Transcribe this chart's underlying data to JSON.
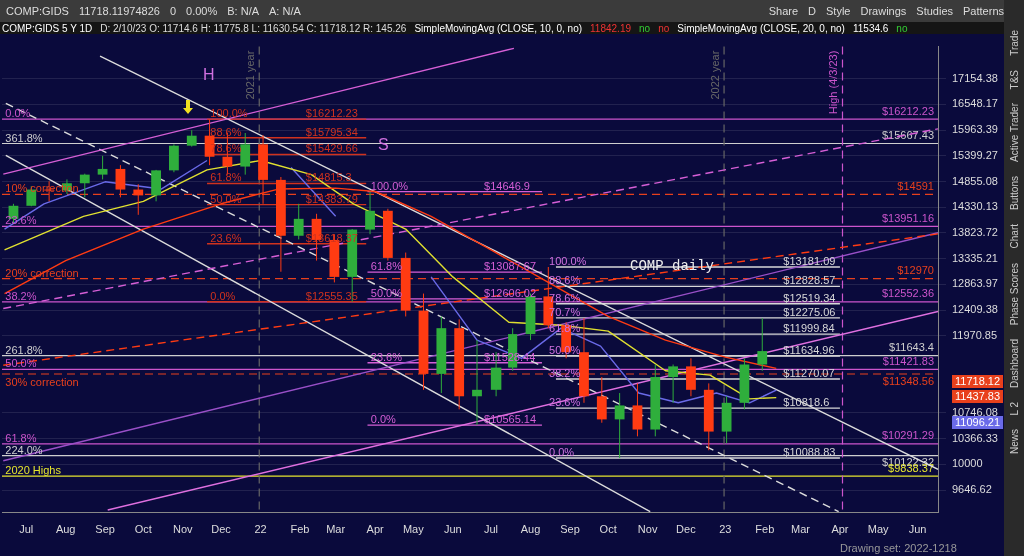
{
  "chart_data": {
    "type": "candlestick",
    "title": "COMP:GIDS 5 Y 1D",
    "subtitle": "D: 2/10/23   O: 11714.6   H: 11775.8   L: 11630.54   C: 11718.12   R: 145.26",
    "x": [
      "2021-06-21",
      "2021-07-05",
      "2021-07-19",
      "2021-08-02",
      "2021-08-16",
      "2021-08-30",
      "2021-09-13",
      "2021-09-27",
      "2021-10-11",
      "2021-10-25",
      "2021-11-08",
      "2021-11-22",
      "2021-12-06",
      "2021-12-20",
      "2022-01-03",
      "2022-01-17",
      "2022-01-31",
      "2022-02-14",
      "2022-02-28",
      "2022-03-14",
      "2022-03-28",
      "2022-04-11",
      "2022-04-25",
      "2022-05-09",
      "2022-05-23",
      "2022-06-06",
      "2022-06-20",
      "2022-07-05",
      "2022-07-18",
      "2022-08-01",
      "2022-08-15",
      "2022-08-29",
      "2022-09-12",
      "2022-09-26",
      "2022-10-10",
      "2022-10-24",
      "2022-11-07",
      "2022-11-21",
      "2022-12-05",
      "2022-12-19",
      "2023-01-02",
      "2023-01-16",
      "2023-01-30"
    ],
    "ohlc": [
      [
        14100,
        14400,
        14000,
        14360
      ],
      [
        14360,
        14760,
        14350,
        14690
      ],
      [
        14690,
        14860,
        14450,
        14670
      ],
      [
        14670,
        14900,
        14600,
        14820
      ],
      [
        14820,
        15020,
        14530,
        15000
      ],
      [
        15000,
        15400,
        14900,
        15120
      ],
      [
        15120,
        15200,
        14530,
        14690
      ],
      [
        14690,
        14800,
        14180,
        14570
      ],
      [
        14570,
        15100,
        14450,
        15090
      ],
      [
        15090,
        15650,
        15050,
        15620
      ],
      [
        15620,
        15960,
        15600,
        15840
      ],
      [
        15840,
        16212,
        15200,
        15380
      ],
      [
        15380,
        15900,
        15000,
        15170
      ],
      [
        15170,
        15900,
        15000,
        15650
      ],
      [
        15650,
        15850,
        14400,
        14890
      ],
      [
        14890,
        14950,
        13094,
        13770
      ],
      [
        13770,
        14400,
        13700,
        14100
      ],
      [
        14100,
        14200,
        13300,
        13690
      ],
      [
        13690,
        13800,
        12900,
        13000
      ],
      [
        13000,
        13900,
        12555,
        13890
      ],
      [
        13890,
        14646,
        13800,
        14260
      ],
      [
        14260,
        14300,
        13300,
        13350
      ],
      [
        13350,
        13450,
        12300,
        12400
      ],
      [
        12400,
        12700,
        11100,
        11350
      ],
      [
        11350,
        12300,
        11050,
        12100
      ],
      [
        12100,
        12250,
        10800,
        11000
      ],
      [
        11000,
        11900,
        10565,
        11100
      ],
      [
        11100,
        11700,
        11000,
        11450
      ],
      [
        11450,
        12100,
        11400,
        12000
      ],
      [
        12000,
        12700,
        11900,
        12650
      ],
      [
        12650,
        13181,
        12100,
        12150
      ],
      [
        12150,
        12200,
        11600,
        11700
      ],
      [
        11700,
        12270,
        10900,
        11000
      ],
      [
        11000,
        11300,
        10600,
        10650
      ],
      [
        10650,
        11050,
        10088,
        10860
      ],
      [
        10860,
        11200,
        10400,
        10500
      ],
      [
        10500,
        11500,
        10400,
        11300
      ],
      [
        11300,
        11500,
        10900,
        11470
      ],
      [
        11470,
        11600,
        11000,
        11100
      ],
      [
        11100,
        11200,
        10200,
        10470
      ],
      [
        10470,
        11000,
        10300,
        10900
      ],
      [
        10900,
        11600,
        10800,
        11500
      ],
      [
        11500,
        12270,
        11400,
        11718.12
      ]
    ],
    "series": [
      {
        "type": "line",
        "color": "#ff3b12",
        "x": [
          "2021-06-14",
          "2021-08-01",
          "2021-10-01",
          "2021-12-01",
          "2022-01-15",
          "2022-03-01",
          "2022-04-01",
          "2022-05-15",
          "2022-07-01",
          "2022-08-15",
          "2022-10-01",
          "2022-11-15",
          "2023-01-01",
          "2023-02-10"
        ],
        "values": [
          12700,
          13300,
          13900,
          14400,
          14700,
          14720,
          14650,
          14150,
          13500,
          12900,
          12300,
          11900,
          11620,
          11437.83
        ]
      },
      {
        "type": "line",
        "color": "#e0e030",
        "x": [
          "2021-06-14",
          "2021-08-15",
          "2021-10-01",
          "2021-11-20",
          "2022-01-01",
          "2022-02-10",
          "2022-03-15",
          "2022-04-25",
          "2022-06-01",
          "2022-07-15",
          "2022-08-25",
          "2022-10-01",
          "2022-11-15",
          "2022-12-20",
          "2023-01-20",
          "2023-02-10"
        ],
        "values": [
          13500,
          14150,
          14450,
          15100,
          15300,
          15000,
          14400,
          13900,
          13000,
          12200,
          12150,
          12050,
          11400,
          11330,
          10960,
          10980
        ]
      },
      {
        "type": "line",
        "color": "#6a6ae8",
        "x": [
          "2021-06-14",
          "2021-07-15",
          "2021-09-01",
          "2021-10-15",
          "2021-11-20",
          "2021-12-20",
          "2022-01-25",
          "2022-03-01",
          "2022-04-10",
          "2022-05-15",
          "2022-06-20",
          "2022-07-25",
          "2022-08-25",
          "2022-09-25",
          "2022-10-25",
          "2022-11-25",
          "2022-12-25",
          "2023-01-20",
          "2023-02-10"
        ],
        "values": [
          13900,
          14400,
          14850,
          14700,
          15300,
          null,
          15150,
          14150,
          null,
          13000,
          11900,
          11600,
          12100,
          11800,
          11050,
          10900,
          11050,
          10900,
          11096.21
        ]
      },
      {
        "type": "line",
        "color": "#d65fd6",
        "x": [
          "2021-06-13",
          "2022-07-19"
        ],
        "values": [
          15010,
          17900
        ]
      },
      {
        "type": "line",
        "color": "#d65fd6",
        "line_style": "dashed",
        "x": [
          "2021-06-13",
          "2023-06-17"
        ],
        "values": [
          12437,
          15993
        ]
      },
      {
        "type": "line",
        "color": "#ff3b12",
        "line_style": "dashed",
        "x": [
          "2021-06-13",
          "2023-06-17"
        ],
        "values": [
          11488,
          13807
        ]
      },
      {
        "type": "line",
        "color": "#e070e0",
        "x": [
          "2021-09-03",
          "2023-06-17"
        ],
        "values": [
          9381,
          12387
        ]
      },
      {
        "type": "line",
        "color": "#9a50c8",
        "x": [
          "2021-06-13",
          "2023-06-17"
        ],
        "values": [
          10051,
          13830
        ]
      },
      {
        "type": "line",
        "color": "#dcdcdc",
        "x": [
          "2021-08-28",
          "2023-06-17"
        ],
        "values": [
          17708,
          9931
        ]
      },
      {
        "type": "line",
        "color": "#dcdcdc",
        "line_style": "dashed",
        "x": [
          "2021-06-15",
          "2023-03-31"
        ],
        "values": [
          16574,
          9360
        ]
      },
      {
        "type": "line",
        "color": "#dcdcdc",
        "x": [
          "2021-06-15",
          "2022-11-03"
        ],
        "values": [
          15411,
          9360
        ]
      },
      {
        "type": "line",
        "color": "#d0321e",
        "x": [
          "2021-11-20",
          "2022-03-25"
        ],
        "values": [
          16212.23,
          16212.23
        ]
      },
      {
        "type": "line",
        "color": "#d0321e",
        "x": [
          "2021-11-20",
          "2022-03-25"
        ],
        "values": [
          15795.34,
          15795.34
        ]
      },
      {
        "type": "line",
        "color": "#d0321e",
        "x": [
          "2021-11-20",
          "2022-03-25"
        ],
        "values": [
          15429.66,
          15429.66
        ]
      },
      {
        "type": "line",
        "color": "#d0321e",
        "x": [
          "2021-11-20",
          "2022-03-25"
        ],
        "values": [
          14815.3,
          14815.3
        ]
      },
      {
        "type": "line",
        "color": "#d0321e",
        "x": [
          "2021-11-20",
          "2022-03-25"
        ],
        "values": [
          14383.79,
          14383.79
        ]
      },
      {
        "type": "line",
        "color": "#d0321e",
        "x": [
          "2021-11-20",
          "2022-03-25"
        ],
        "values": [
          13618.37,
          13618.37
        ]
      },
      {
        "type": "line",
        "color": "#d0321e",
        "x": [
          "2021-11-20",
          "2022-03-25"
        ],
        "values": [
          12555.35,
          12555.35
        ]
      },
      {
        "type": "line",
        "color": "#d65fd6",
        "x": [
          "2022-03-26",
          "2022-08-10"
        ],
        "values": [
          14646.9,
          14646.9
        ]
      },
      {
        "type": "line",
        "color": "#d65fd6",
        "x": [
          "2022-03-26",
          "2022-08-10"
        ],
        "values": [
          13087.67,
          13087.67
        ]
      },
      {
        "type": "line",
        "color": "#d65fd6",
        "x": [
          "2022-03-26",
          "2022-08-10"
        ],
        "values": [
          12606.02,
          12606.02
        ]
      },
      {
        "type": "line",
        "color": "#d65fd6",
        "x": [
          "2022-03-26",
          "2022-08-10"
        ],
        "values": [
          11528.44,
          11528.44
        ]
      },
      {
        "type": "line",
        "color": "#d65fd6",
        "x": [
          "2022-03-26",
          "2022-08-10"
        ],
        "values": [
          10565.14,
          10565.14
        ]
      },
      {
        "type": "line",
        "color": "#d8d8d8",
        "x": [
          "2022-08-21",
          "2023-04-01"
        ],
        "values": [
          13181.09,
          13181.09
        ]
      },
      {
        "type": "line",
        "color": "#d8d8d8",
        "x": [
          "2022-08-21",
          "2023-04-01"
        ],
        "values": [
          12828.57,
          12828.57
        ]
      },
      {
        "type": "line",
        "color": "#d8d8d8",
        "x": [
          "2022-08-21",
          "2023-04-01"
        ],
        "values": [
          12519.34,
          12519.34
        ]
      },
      {
        "type": "line",
        "color": "#d8d8d8",
        "x": [
          "2022-08-21",
          "2023-04-01"
        ],
        "values": [
          12275.06,
          12275.06
        ]
      },
      {
        "type": "line",
        "color": "#d8d8d8",
        "x": [
          "2022-08-21",
          "2023-04-01"
        ],
        "values": [
          11999.84,
          11999.84
        ]
      },
      {
        "type": "line",
        "color": "#d8d8d8",
        "x": [
          "2022-08-21",
          "2023-04-01"
        ],
        "values": [
          11634.96,
          11634.96
        ]
      },
      {
        "type": "line",
        "color": "#d8d8d8",
        "x": [
          "2022-08-21",
          "2023-04-01"
        ],
        "values": [
          11270.07,
          11270.07
        ]
      },
      {
        "type": "line",
        "color": "#d8d8d8",
        "x": [
          "2022-08-21",
          "2023-04-01"
        ],
        "values": [
          10818.6,
          10818.6
        ]
      },
      {
        "type": "line",
        "color": "#d8d8d8",
        "x": [
          "2022-08-21",
          "2023-04-01"
        ],
        "values": [
          10088.83,
          10088.83
        ]
      }
    ],
    "xlim": [
      "2021-06-12",
      "2023-06-17"
    ],
    "xticks": [
      {
        "value": "2021-07-01",
        "label": "Jul"
      },
      {
        "value": "2021-08-01",
        "label": "Aug"
      },
      {
        "value": "2021-09-01",
        "label": "Sep"
      },
      {
        "value": "2021-10-01",
        "label": "Oct"
      },
      {
        "value": "2021-11-01",
        "label": "Nov"
      },
      {
        "value": "2021-12-01",
        "label": "Dec"
      },
      {
        "value": "2022-01-01",
        "label": "22"
      },
      {
        "value": "2022-02-01",
        "label": "Feb"
      },
      {
        "value": "2022-03-01",
        "label": "Mar"
      },
      {
        "value": "2022-04-01",
        "label": "Apr"
      },
      {
        "value": "2022-05-01",
        "label": "May"
      },
      {
        "value": "2022-06-01",
        "label": "Jun"
      },
      {
        "value": "2022-07-01",
        "label": "Jul"
      },
      {
        "value": "2022-08-01",
        "label": "Aug"
      },
      {
        "value": "2022-09-01",
        "label": "Sep"
      },
      {
        "value": "2022-10-01",
        "label": "Oct"
      },
      {
        "value": "2022-11-01",
        "label": "Nov"
      },
      {
        "value": "2022-12-01",
        "label": "Dec"
      },
      {
        "value": "2023-01-01",
        "label": "23"
      },
      {
        "value": "2023-02-01",
        "label": "Feb"
      },
      {
        "value": "2023-03-01",
        "label": "Mar"
      },
      {
        "value": "2023-04-01",
        "label": "Apr"
      },
      {
        "value": "2023-05-01",
        "label": "May"
      },
      {
        "value": "2023-06-01",
        "label": "Jun"
      }
    ],
    "ylim": [
      9345,
      17943
    ],
    "yticks": [
      9646.62,
      10000,
      10366.33,
      10746.08,
      11970.85,
      12409.38,
      12863.97,
      13335.21,
      13823.72,
      14330.13,
      14855.08,
      15399.27,
      15963.39,
      16548.17,
      17154.38
    ],
    "log": "y",
    "grid": "y",
    "marker": "none",
    "ref_lines": [
      {
        "axis": "y",
        "value": 16212.23,
        "label": "$16212.23",
        "color": "#cc55cc"
      },
      {
        "axis": "y",
        "value": 15667.43,
        "label": "$15667.43",
        "color": "#cfcfcf"
      },
      {
        "axis": "y",
        "value": 14591,
        "label": "$14591",
        "color": "#e8401c",
        "line_style": "dashed"
      },
      {
        "axis": "y",
        "value": 13951.16,
        "label": "$13951.16",
        "color": "#cc55cc"
      },
      {
        "axis": "y",
        "value": 12970,
        "label": "$12970",
        "color": "#e8401c",
        "line_style": "dashed"
      },
      {
        "axis": "y",
        "value": 12552.36,
        "label": "$12552.36",
        "color": "#cc55cc"
      },
      {
        "axis": "y",
        "value": 11643.4,
        "label": "$11643.4",
        "color": "#cfcfcf"
      },
      {
        "axis": "y",
        "value": 11421.83,
        "label": "$11421.83",
        "color": "#cc55cc"
      },
      {
        "axis": "y",
        "value": 11348.56,
        "label": "$11348.56",
        "color": "#e8401c",
        "line_style": "dashed"
      },
      {
        "axis": "y",
        "value": 10291.29,
        "label": "$10291.29",
        "color": "#cc55cc"
      },
      {
        "axis": "y",
        "value": 10122.32,
        "label": "$10122.32",
        "color": "#cfcfcf"
      },
      {
        "axis": "y",
        "value": 9838.37,
        "label": "$9838.37",
        "color": "#e6e62e"
      },
      {
        "axis": "x",
        "value": "2023-04-03",
        "label": "High (4/3/23)",
        "color": "#cc55cc",
        "line_style": "dashed"
      },
      {
        "axis": "x",
        "value": "2021-12-31",
        "label": "2021 year",
        "color": "#666666",
        "line_style": "dashed"
      },
      {
        "axis": "x",
        "value": "2022-12-31",
        "label": "2022 year",
        "color": "#666666",
        "line_style": "dashed"
      }
    ],
    "annotations": [
      "COMP:GIDS",
      "11718.11974826",
      "0",
      "0.00%",
      "B: N/A",
      "A: N/A",
      "Share",
      "D",
      "Style",
      "Drawings",
      "Studies",
      "Patterns",
      "SimpleMovingAvg (CLOSE, 10, 0, no)",
      "11842.19",
      "no",
      "no",
      "SimpleMovingAvg (CLOSE, 20, 0, no)",
      "11534.6",
      "no",
      "COMP daily",
      "Drawing set: 2022-1218",
      "Trade",
      "T&S",
      "Active Trader",
      "Buttons",
      "Chart",
      "Phase Scores",
      "Dashboard",
      "L 2",
      "News",
      "H",
      "S",
      "11718.12",
      "11437.83",
      "11096.21",
      {
        "text": "0.0%",
        "x": "2021-06-13",
        "y": 16212.23
      },
      {
        "text": "361.8%",
        "x": "2021-06-13",
        "y": 15667.43
      },
      {
        "text": "10% correction",
        "x": "2021-06-13",
        "y": 14591
      },
      {
        "text": "23.6%",
        "x": "2021-06-13",
        "y": 13951.16
      },
      {
        "text": "20% correction",
        "x": "2021-06-13",
        "y": 12970
      },
      {
        "text": "38.2%",
        "x": "2021-06-13",
        "y": 12552.36
      },
      {
        "text": "261.8%",
        "x": "2021-06-13",
        "y": 11643.4
      },
      {
        "text": "50.0%",
        "x": "2021-06-13",
        "y": 11421.83
      },
      {
        "text": "30% correction",
        "x": "2021-06-13",
        "y": 11348.56
      },
      {
        "text": "61.8%",
        "x": "2021-06-13",
        "y": 10291.29
      },
      {
        "text": "224.0%",
        "x": "2021-06-13",
        "y": 10122.32
      },
      {
        "text": "2020 Highs",
        "x": "2021-06-13",
        "y": 9838.37
      },
      {
        "text": "100.0%",
        "x": "2021-11-21",
        "y": 16212.23
      },
      {
        "text": "$16212.23",
        "x": "2022-02-04",
        "y": 16212.23
      },
      {
        "text": "88.6%",
        "x": "2021-11-21",
        "y": 15795.34
      },
      {
        "text": "$15795.34",
        "x": "2022-02-04",
        "y": 15795.34
      },
      {
        "text": "78.6%",
        "x": "2021-11-21",
        "y": 15429.66
      },
      {
        "text": "$15429.66",
        "x": "2022-02-04",
        "y": 15429.66
      },
      {
        "text": "61.8%",
        "x": "2021-11-21",
        "y": 14815.3
      },
      {
        "text": "$14815.3",
        "x": "2022-02-04",
        "y": 14815.3
      },
      {
        "text": "50.0%",
        "x": "2021-11-21",
        "y": 14383.79
      },
      {
        "text": "$14383.79",
        "x": "2022-02-04",
        "y": 14383.79
      },
      {
        "text": "23.6%",
        "x": "2021-11-21",
        "y": 13618.37
      },
      {
        "text": "$13618.37",
        "x": "2022-02-04",
        "y": 13618.37
      },
      {
        "text": "0.0%",
        "x": "2021-11-21",
        "y": 12555.35
      },
      {
        "text": "$12555.35",
        "x": "2022-02-04",
        "y": 12555.35
      },
      {
        "text": "100.0%",
        "x": "2022-03-27",
        "y": 14646.9
      },
      {
        "text": "$14646.9",
        "x": "2022-06-24",
        "y": 14646.9
      },
      {
        "text": "61.8%",
        "x": "2022-03-27",
        "y": 13087.67
      },
      {
        "text": "$13087.67",
        "x": "2022-06-24",
        "y": 13087.67
      },
      {
        "text": "50.0%",
        "x": "2022-03-27",
        "y": 12606.02
      },
      {
        "text": "$12606.02",
        "x": "2022-06-24",
        "y": 12606.02
      },
      {
        "text": "23.6%",
        "x": "2022-03-27",
        "y": 11528.44
      },
      {
        "text": "$11528.44",
        "x": "2022-06-24",
        "y": 11528.44
      },
      {
        "text": "0.0%",
        "x": "2022-03-27",
        "y": 10565.14
      },
      {
        "text": "$10565.14",
        "x": "2022-06-24",
        "y": 10565.14
      },
      {
        "text": "100.0%",
        "x": "2022-08-14",
        "y": 13181.09
      },
      {
        "text": "$13181.09",
        "x": "2023-02-14",
        "y": 13181.09
      },
      {
        "text": "88.6%",
        "x": "2022-08-14",
        "y": 12828.57
      },
      {
        "text": "$12828.57",
        "x": "2023-02-14",
        "y": 12828.57
      },
      {
        "text": "78.6%",
        "x": "2022-08-14",
        "y": 12519.34
      },
      {
        "text": "$12519.34",
        "x": "2023-02-14",
        "y": 12519.34
      },
      {
        "text": "70.7%",
        "x": "2022-08-14",
        "y": 12275.06
      },
      {
        "text": "$12275.06",
        "x": "2023-02-14",
        "y": 12275.06
      },
      {
        "text": "61.8%",
        "x": "2022-08-14",
        "y": 11999.84
      },
      {
        "text": "$11999.84",
        "x": "2023-02-14",
        "y": 11999.84
      },
      {
        "text": "50.0%",
        "x": "2022-08-14",
        "y": 11634.96
      },
      {
        "text": "$11634.96",
        "x": "2023-02-14",
        "y": 11634.96
      },
      {
        "text": "38.2%",
        "x": "2022-08-14",
        "y": 11270.07
      },
      {
        "text": "$11270.07",
        "x": "2023-02-14",
        "y": 11270.07
      },
      {
        "text": "23.6%",
        "x": "2022-08-14",
        "y": 10818.6
      },
      {
        "text": "$10818.6",
        "x": "2023-02-14",
        "y": 10818.6
      },
      {
        "text": "0.0%",
        "x": "2022-08-14",
        "y": 10088.83
      },
      {
        "text": "$10088.83",
        "x": "2023-02-14",
        "y": 10088.83
      }
    ]
  }
}
